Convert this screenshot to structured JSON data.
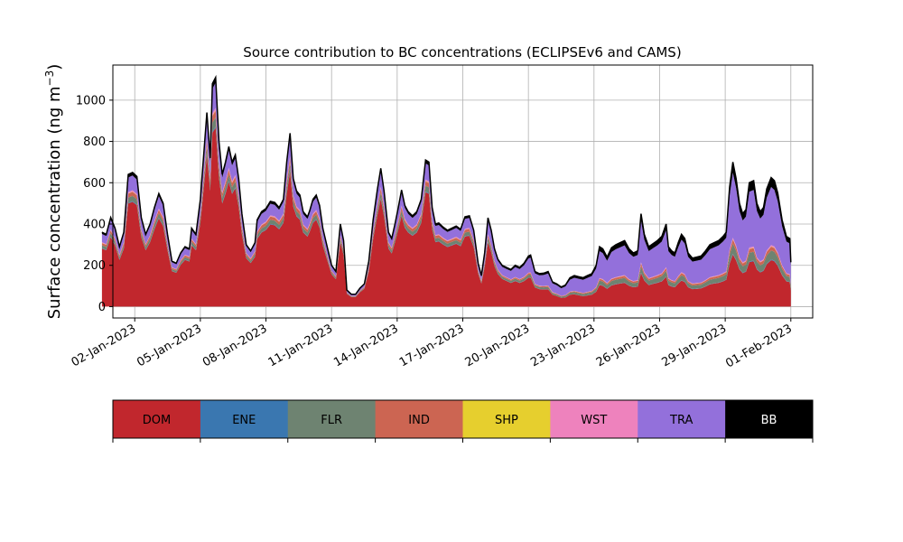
{
  "chart_data": {
    "type": "area",
    "stacked": true,
    "title": "Source contribution to BC concentrations (ECLIPSEv6 and CAMS)",
    "ylabel": "Surface concentration (ng m",
    "ylabel_sup": "−3",
    "ylabel_close": ")",
    "xlabel": "",
    "xlim": [
      0,
      32
    ],
    "ylim": [
      -55,
      1170
    ],
    "yticks": [
      0,
      200,
      400,
      600,
      800,
      1000
    ],
    "grid": true,
    "x_tick_positions": [
      1,
      4,
      7,
      10,
      13,
      16,
      19,
      22,
      25,
      28,
      31
    ],
    "x_tick_labels": [
      "02-Jan-2023",
      "05-Jan-2023",
      "08-Jan-2023",
      "11-Jan-2023",
      "14-Jan-2023",
      "17-Jan-2023",
      "20-Jan-2023",
      "23-Jan-2023",
      "26-Jan-2023",
      "29-Jan-2023",
      "01-Feb-2023"
    ],
    "x_unit": "days since 01-Jan-2023",
    "total_profile": [
      [
        -0.5,
        360
      ],
      [
        -0.3,
        350
      ],
      [
        -0.1,
        432
      ],
      [
        0.1,
        380
      ],
      [
        0.3,
        290
      ],
      [
        0.5,
        360
      ],
      [
        0.7,
        640
      ],
      [
        0.9,
        650
      ],
      [
        1.1,
        630
      ],
      [
        1.3,
        430
      ],
      [
        1.5,
        350
      ],
      [
        1.7,
        400
      ],
      [
        1.9,
        480
      ],
      [
        2.1,
        548
      ],
      [
        2.3,
        500
      ],
      [
        2.5,
        350
      ],
      [
        2.7,
        220
      ],
      [
        2.9,
        210
      ],
      [
        3.1,
        260
      ],
      [
        3.3,
        290
      ],
      [
        3.5,
        280
      ],
      [
        3.6,
        380
      ],
      [
        3.8,
        350
      ],
      [
        4.0,
        520
      ],
      [
        4.2,
        800
      ],
      [
        4.3,
        940
      ],
      [
        4.45,
        720
      ],
      [
        4.55,
        1080
      ],
      [
        4.7,
        1110
      ],
      [
        4.85,
        800
      ],
      [
        5.0,
        640
      ],
      [
        5.15,
        700
      ],
      [
        5.3,
        775
      ],
      [
        5.45,
        700
      ],
      [
        5.6,
        735
      ],
      [
        5.75,
        620
      ],
      [
        5.9,
        450
      ],
      [
        6.1,
        300
      ],
      [
        6.3,
        270
      ],
      [
        6.5,
        310
      ],
      [
        6.6,
        420
      ],
      [
        6.8,
        460
      ],
      [
        7.0,
        475
      ],
      [
        7.2,
        510
      ],
      [
        7.4,
        505
      ],
      [
        7.6,
        480
      ],
      [
        7.8,
        520
      ],
      [
        7.95,
        700
      ],
      [
        8.1,
        840
      ],
      [
        8.25,
        620
      ],
      [
        8.4,
        560
      ],
      [
        8.55,
        540
      ],
      [
        8.7,
        460
      ],
      [
        8.9,
        435
      ],
      [
        9.0,
        465
      ],
      [
        9.15,
        520
      ],
      [
        9.3,
        540
      ],
      [
        9.45,
        490
      ],
      [
        9.6,
        380
      ],
      [
        9.8,
        290
      ],
      [
        10.0,
        200
      ],
      [
        10.2,
        170
      ],
      [
        10.4,
        400
      ],
      [
        10.55,
        320
      ],
      [
        10.7,
        80
      ],
      [
        10.9,
        60
      ],
      [
        11.1,
        60
      ],
      [
        11.3,
        90
      ],
      [
        11.5,
        110
      ],
      [
        11.7,
        220
      ],
      [
        11.9,
        420
      ],
      [
        12.1,
        570
      ],
      [
        12.25,
        670
      ],
      [
        12.4,
        560
      ],
      [
        12.6,
        360
      ],
      [
        12.75,
        330
      ],
      [
        12.9,
        400
      ],
      [
        13.05,
        480
      ],
      [
        13.2,
        565
      ],
      [
        13.35,
        490
      ],
      [
        13.5,
        460
      ],
      [
        13.7,
        440
      ],
      [
        13.9,
        460
      ],
      [
        14.1,
        520
      ],
      [
        14.3,
        710
      ],
      [
        14.45,
        700
      ],
      [
        14.6,
        480
      ],
      [
        14.75,
        400
      ],
      [
        14.9,
        405
      ],
      [
        15.1,
        385
      ],
      [
        15.3,
        370
      ],
      [
        15.5,
        380
      ],
      [
        15.7,
        390
      ],
      [
        15.9,
        375
      ],
      [
        16.1,
        435
      ],
      [
        16.3,
        440
      ],
      [
        16.5,
        370
      ],
      [
        16.7,
        210
      ],
      [
        16.85,
        150
      ],
      [
        17.0,
        260
      ],
      [
        17.15,
        430
      ],
      [
        17.3,
        370
      ],
      [
        17.45,
        280
      ],
      [
        17.6,
        230
      ],
      [
        17.8,
        200
      ],
      [
        18.0,
        190
      ],
      [
        18.2,
        180
      ],
      [
        18.4,
        200
      ],
      [
        18.6,
        190
      ],
      [
        18.8,
        210
      ],
      [
        19.0,
        245
      ],
      [
        19.1,
        250
      ],
      [
        19.3,
        170
      ],
      [
        19.5,
        160
      ],
      [
        19.7,
        162
      ],
      [
        19.9,
        170
      ],
      [
        20.1,
        120
      ],
      [
        20.3,
        110
      ],
      [
        20.5,
        95
      ],
      [
        20.7,
        105
      ],
      [
        20.9,
        140
      ],
      [
        21.1,
        150
      ],
      [
        21.3,
        145
      ],
      [
        21.5,
        140
      ],
      [
        21.7,
        150
      ],
      [
        21.9,
        160
      ],
      [
        22.1,
        200
      ],
      [
        22.25,
        290
      ],
      [
        22.4,
        280
      ],
      [
        22.6,
        240
      ],
      [
        22.8,
        285
      ],
      [
        23.0,
        300
      ],
      [
        23.2,
        310
      ],
      [
        23.4,
        320
      ],
      [
        23.6,
        280
      ],
      [
        23.8,
        260
      ],
      [
        24.0,
        270
      ],
      [
        24.15,
        450
      ],
      [
        24.3,
        350
      ],
      [
        24.5,
        290
      ],
      [
        24.7,
        305
      ],
      [
        24.9,
        320
      ],
      [
        25.1,
        340
      ],
      [
        25.3,
        400
      ],
      [
        25.4,
        290
      ],
      [
        25.55,
        270
      ],
      [
        25.7,
        260
      ],
      [
        25.85,
        310
      ],
      [
        26.0,
        350
      ],
      [
        26.15,
        330
      ],
      [
        26.3,
        260
      ],
      [
        26.5,
        235
      ],
      [
        26.7,
        240
      ],
      [
        26.9,
        245
      ],
      [
        27.1,
        270
      ],
      [
        27.3,
        300
      ],
      [
        27.5,
        310
      ],
      [
        27.7,
        320
      ],
      [
        27.9,
        340
      ],
      [
        28.05,
        360
      ],
      [
        28.2,
        580
      ],
      [
        28.35,
        700
      ],
      [
        28.5,
        620
      ],
      [
        28.65,
        500
      ],
      [
        28.8,
        450
      ],
      [
        28.95,
        470
      ],
      [
        29.1,
        600
      ],
      [
        29.3,
        610
      ],
      [
        29.45,
        500
      ],
      [
        29.6,
        460
      ],
      [
        29.75,
        480
      ],
      [
        29.9,
        570
      ],
      [
        30.1,
        625
      ],
      [
        30.25,
        610
      ],
      [
        30.4,
        550
      ],
      [
        30.6,
        420
      ],
      [
        30.8,
        340
      ],
      [
        30.95,
        330
      ],
      [
        31.0,
        215
      ]
    ],
    "series": [
      {
        "name": "DOM",
        "color": "#c1272d",
        "fraction": 0.78,
        "fraction_late": 0.36
      },
      {
        "name": "ENE",
        "color": "#3a77b0",
        "fraction": 0.005,
        "fraction_late": 0.005
      },
      {
        "name": "FLR",
        "color": "#6e8371",
        "fraction": 0.04,
        "fraction_late": 0.07
      },
      {
        "name": "IND",
        "color": "#cc6552",
        "fraction": 0.03,
        "fraction_late": 0.03
      },
      {
        "name": "SHP",
        "color": "#e6cf2e",
        "fraction": 0.002,
        "fraction_late": 0.002
      },
      {
        "name": "WST",
        "color": "#ee82bd",
        "fraction": 0.01,
        "fraction_late": 0.01
      },
      {
        "name": "TRA",
        "color": "#9370db",
        "fraction": 0.11,
        "fraction_late": 0.45
      },
      {
        "name": "BB",
        "color": "#000000",
        "fraction": 0.023,
        "fraction_late": 0.073
      }
    ],
    "total_line_color": "#000000"
  }
}
